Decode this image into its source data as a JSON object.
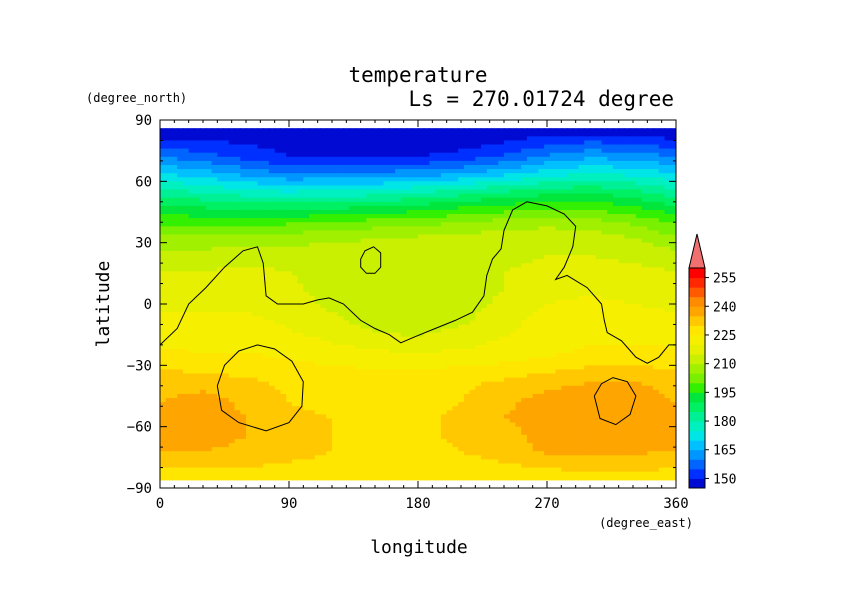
{
  "chart_data": {
    "type": "heatmap",
    "title": "temperature",
    "subtitle": "Ls = 270.01724 degree",
    "xlabel": "longitude",
    "ylabel": "latitude",
    "x_unit": "(degree_east)",
    "y_unit": "(degree_north)",
    "xlim": [
      0,
      360
    ],
    "ylim": [
      -90,
      90
    ],
    "x_ticks": [
      0,
      90,
      180,
      270,
      360
    ],
    "y_ticks": [
      90,
      60,
      30,
      0,
      -30,
      -60,
      -90
    ],
    "x_tick_labels": [
      "0",
      "90",
      "180",
      "270",
      "360"
    ],
    "y_tick_labels": [
      "90",
      "60",
      "30",
      "0",
      "−30",
      "−60",
      "−90"
    ],
    "grid": false,
    "contour_levels": [
      145,
      150,
      155,
      160,
      165,
      170,
      175,
      180,
      185,
      190,
      195,
      200,
      205,
      210,
      215,
      220,
      225,
      230,
      235,
      240,
      245,
      250,
      255,
      260
    ],
    "colorbar_labels": [
      "150",
      "165",
      "180",
      "195",
      "210",
      "225",
      "240",
      "255"
    ],
    "colorbar_label_values": [
      150,
      165,
      180,
      195,
      210,
      225,
      240,
      255
    ],
    "colorbar_over_arrow": true,
    "colors": [
      "#000ad2",
      "#0030ff",
      "#0064ff",
      "#0096ff",
      "#00c0ff",
      "#00e6e6",
      "#00f0c0",
      "#00f096",
      "#00f064",
      "#00e63c",
      "#32f000",
      "#78f000",
      "#a0f000",
      "#c8f000",
      "#e6f000",
      "#f6f000",
      "#ffe600",
      "#ffc800",
      "#ffa500",
      "#ff8c00",
      "#ff5a00",
      "#ff2800",
      "#ff0000",
      "#f07070"
    ],
    "latitudes": [
      86,
      80,
      72,
      64,
      56,
      48,
      40,
      32,
      24,
      16,
      8,
      0,
      -8,
      -16,
      -24,
      -32,
      -40,
      -48,
      -56,
      -64,
      -72,
      -80,
      -86
    ],
    "longitudes": [
      0,
      30,
      60,
      90,
      120,
      150,
      180,
      210,
      240,
      270,
      300,
      330,
      360
    ],
    "values": [
      [
        146,
        146,
        146,
        146,
        146,
        146,
        146,
        146,
        146,
        146,
        146,
        146,
        146
      ],
      [
        150,
        150,
        149,
        148,
        147,
        147,
        147,
        147,
        149,
        152,
        154,
        153,
        150
      ],
      [
        160,
        157,
        153,
        150,
        149,
        149,
        150,
        152,
        156,
        161,
        164,
        163,
        160
      ],
      [
        170,
        167,
        163,
        160,
        160,
        161,
        162,
        164,
        168,
        172,
        175,
        173,
        170
      ],
      [
        180,
        178,
        175,
        173,
        174,
        175,
        177,
        180,
        183,
        186,
        187,
        185,
        180
      ],
      [
        190,
        189,
        187,
        187,
        188,
        189,
        191,
        194,
        196,
        198,
        198,
        195,
        190
      ],
      [
        199,
        198,
        198,
        199,
        200,
        202,
        203,
        205,
        207,
        208,
        207,
        204,
        199
      ],
      [
        206,
        206,
        207,
        208,
        209,
        210,
        211,
        212,
        213,
        214,
        213,
        210,
        206
      ],
      [
        212,
        212,
        213,
        213,
        212,
        212,
        213,
        213,
        214,
        215,
        215,
        214,
        212
      ],
      [
        215,
        215,
        216,
        215,
        213,
        212,
        212,
        213,
        215,
        216,
        216,
        216,
        215
      ],
      [
        217,
        217,
        218,
        216,
        213,
        212,
        212,
        213,
        215,
        218,
        219,
        218,
        217
      ],
      [
        219,
        219,
        219,
        217,
        214,
        212,
        211,
        213,
        216,
        220,
        221,
        220,
        219
      ],
      [
        221,
        221,
        221,
        219,
        216,
        213,
        212,
        214,
        218,
        222,
        223,
        222,
        221
      ],
      [
        223,
        223,
        223,
        221,
        219,
        216,
        215,
        217,
        220,
        223,
        224,
        224,
        223
      ],
      [
        226,
        225,
        225,
        224,
        222,
        221,
        220,
        221,
        222,
        224,
        226,
        226,
        226
      ],
      [
        230,
        229,
        228,
        227,
        226,
        225,
        225,
        226,
        227,
        229,
        231,
        231,
        230
      ],
      [
        233,
        234,
        232,
        229,
        228,
        227,
        228,
        229,
        232,
        234,
        236,
        236,
        233
      ],
      [
        235,
        237,
        234,
        230,
        229,
        228,
        228,
        230,
        234,
        237,
        238,
        238,
        235
      ],
      [
        237,
        238,
        235,
        231,
        230,
        229,
        229,
        231,
        235,
        238,
        239,
        239,
        237
      ],
      [
        237,
        237,
        235,
        232,
        230,
        229,
        229,
        231,
        233,
        237,
        238,
        238,
        237
      ],
      [
        235,
        235,
        234,
        232,
        230,
        229,
        228,
        230,
        232,
        236,
        237,
        236,
        235
      ],
      [
        230,
        230,
        230,
        229,
        228,
        227,
        227,
        228,
        229,
        230,
        231,
        231,
        230
      ],
      [
        228,
        228,
        228,
        228,
        228,
        228,
        228,
        228,
        228,
        228,
        228,
        228,
        228
      ]
    ],
    "topography_contours": [
      [
        [
          0,
          -20
        ],
        [
          12,
          -12
        ],
        [
          20,
          0
        ],
        [
          32,
          8
        ],
        [
          45,
          18
        ],
        [
          58,
          26
        ],
        [
          68,
          28
        ],
        [
          72,
          20
        ],
        [
          74,
          4
        ],
        [
          82,
          0
        ],
        [
          100,
          0
        ],
        [
          110,
          2
        ],
        [
          118,
          3
        ],
        [
          128,
          0
        ],
        [
          140,
          -8
        ],
        [
          150,
          -12
        ],
        [
          160,
          -15
        ],
        [
          168,
          -19
        ],
        [
          178,
          -16
        ],
        [
          192,
          -12
        ],
        [
          206,
          -8
        ],
        [
          218,
          -4
        ],
        [
          226,
          4
        ],
        [
          228,
          14
        ],
        [
          232,
          22
        ],
        [
          238,
          27
        ],
        [
          240,
          36
        ],
        [
          246,
          46
        ],
        [
          256,
          50
        ],
        [
          270,
          48
        ],
        [
          282,
          44
        ],
        [
          290,
          38
        ],
        [
          288,
          28
        ],
        [
          282,
          18
        ],
        [
          276,
          12
        ],
        [
          284,
          14
        ],
        [
          298,
          8
        ],
        [
          308,
          0
        ],
        [
          310,
          -8
        ],
        [
          312,
          -14
        ],
        [
          322,
          -18
        ],
        [
          332,
          -26
        ],
        [
          340,
          -29
        ],
        [
          348,
          -26
        ],
        [
          355,
          -20
        ],
        [
          360,
          -20
        ]
      ],
      [
        [
          140,
          22
        ],
        [
          143,
          26
        ],
        [
          149,
          28
        ],
        [
          154,
          25
        ],
        [
          154,
          18
        ],
        [
          150,
          15
        ],
        [
          144,
          15
        ],
        [
          140,
          18
        ],
        [
          140,
          22
        ]
      ],
      [
        [
          40,
          -40
        ],
        [
          45,
          -30
        ],
        [
          55,
          -23
        ],
        [
          68,
          -20
        ],
        [
          80,
          -22
        ],
        [
          92,
          -28
        ],
        [
          100,
          -38
        ],
        [
          99,
          -50
        ],
        [
          90,
          -58
        ],
        [
          74,
          -62
        ],
        [
          55,
          -58
        ],
        [
          43,
          -52
        ],
        [
          40,
          -40
        ]
      ],
      [
        [
          303,
          -45
        ],
        [
          308,
          -39
        ],
        [
          316,
          -36
        ],
        [
          326,
          -38
        ],
        [
          332,
          -45
        ],
        [
          328,
          -54
        ],
        [
          318,
          -59
        ],
        [
          307,
          -56
        ],
        [
          303,
          -45
        ]
      ]
    ]
  }
}
